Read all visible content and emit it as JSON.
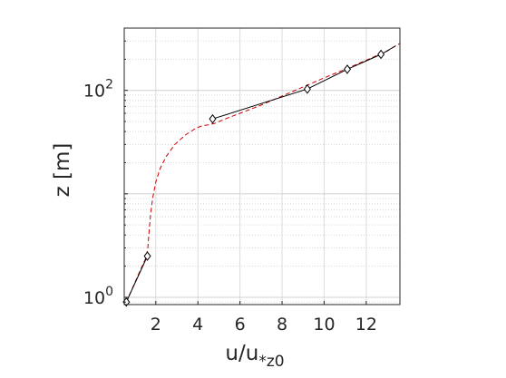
{
  "chart_data": {
    "type": "line",
    "title": "",
    "xlabel": {
      "main": "u/u",
      "sub": "*z0"
    },
    "ylabel": "z [m]",
    "xlim": [
      0.5,
      13.6
    ],
    "ylim": [
      0.85,
      400
    ],
    "yscale": "log",
    "grid": true,
    "x_ticks": [
      {
        "value": 2,
        "label": "2"
      },
      {
        "value": 4,
        "label": "4"
      },
      {
        "value": 6,
        "label": "6"
      },
      {
        "value": 8,
        "label": "8"
      },
      {
        "value": 10,
        "label": "10"
      },
      {
        "value": 12,
        "label": "12"
      }
    ],
    "y_ticks": [
      {
        "value": 1,
        "base": "10",
        "exp": "0"
      },
      {
        "value": 100,
        "base": "10",
        "exp": "2"
      }
    ],
    "series": [
      {
        "style": "dashed",
        "color": "#cc0000",
        "x": [
          0.6,
          1.2,
          1.55,
          1.62,
          1.68,
          1.75,
          1.85,
          2.0,
          2.2,
          2.5,
          2.9,
          3.4,
          3.9,
          4.2,
          4.5,
          4.8,
          5.2,
          6.0,
          7.0,
          8.0,
          9.0,
          10.0,
          11.0,
          12.0,
          13.0,
          13.6
        ],
        "y": [
          0.9,
          1.7,
          2.45,
          3.0,
          4.3,
          6.2,
          9.0,
          13.0,
          17.5,
          23.0,
          30.0,
          37.0,
          43.0,
          45.5,
          46.5,
          48.0,
          52.0,
          60.0,
          72.0,
          88.0,
          108.0,
          132.0,
          160.0,
          196.0,
          240.0,
          285.0
        ]
      },
      {
        "style": "solid",
        "color": "#000000",
        "marker": "diamond",
        "x": [
          0.6,
          1.6
        ],
        "y": [
          0.9,
          2.5
        ]
      },
      {
        "style": "solid",
        "color": "#000000",
        "marker": "diamond",
        "x": [
          4.7,
          9.2,
          11.1,
          12.7,
          13.4
        ],
        "y": [
          53.0,
          103.0,
          160.0,
          223.0,
          270.0
        ],
        "marker_mask": [
          true,
          true,
          true,
          true,
          false
        ]
      }
    ]
  }
}
